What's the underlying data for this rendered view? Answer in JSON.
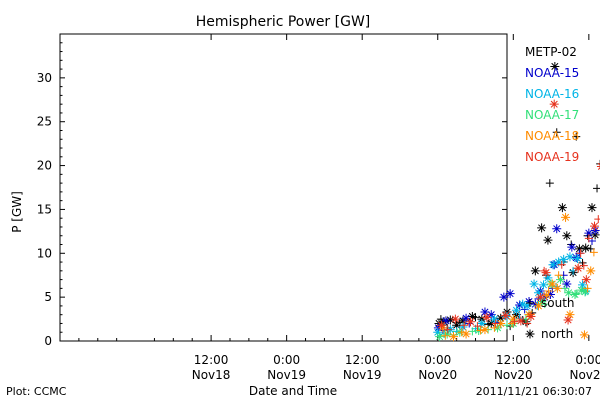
{
  "chart_data": {
    "type": "scatter",
    "title": "Hemispheric Power [GW]",
    "xlabel": "Date and Time",
    "ylabel": "P [GW]",
    "x_range_hours": [
      -36,
      35
    ],
    "ylim": [
      0,
      35
    ],
    "yticks": [
      0,
      5,
      10,
      15,
      20,
      25,
      30
    ],
    "xticks": [
      {
        "t": -12,
        "time": "12:00",
        "date": "Nov18"
      },
      {
        "t": 0,
        "time": "0:00",
        "date": "Nov19"
      },
      {
        "t": 12,
        "time": "12:00",
        "date": "Nov19"
      },
      {
        "t": 24,
        "time": "0:00",
        "date": "Nov20"
      },
      {
        "t": 36,
        "time": "12:00",
        "date": "Nov20"
      },
      {
        "t": 48,
        "time": "0:00",
        "date": "Nov21"
      }
    ],
    "marker_legend": [
      {
        "symbol": "+",
        "label": "south"
      },
      {
        "symbol": "*",
        "label": "north"
      }
    ],
    "series": [
      {
        "name": "METP-02",
        "color": "#000000",
        "north": [
          [
            24.2,
            2.0
          ],
          [
            25.0,
            2.2
          ],
          [
            26.0,
            2.4
          ],
          [
            27.0,
            1.8
          ],
          [
            28.0,
            2.3
          ],
          [
            29.5,
            2.8
          ],
          [
            31.0,
            2.5
          ],
          [
            32.5,
            2.0
          ],
          [
            34.0,
            2.6
          ],
          [
            35.0,
            3.3
          ],
          [
            36.5,
            3.0
          ],
          [
            38.0,
            2.2
          ],
          [
            39.5,
            8.0
          ],
          [
            40.5,
            12.9
          ],
          [
            41.5,
            11.5
          ],
          [
            42.6,
            31.3
          ],
          [
            43.8,
            15.2
          ],
          [
            44.5,
            12.0
          ],
          [
            45.5,
            7.8
          ],
          [
            46.5,
            10.5
          ],
          [
            47.5,
            10.6
          ],
          [
            48.5,
            15.2
          ],
          [
            49.0,
            12.1
          ]
        ],
        "south": [
          [
            24.5,
            2.5
          ],
          [
            25.5,
            1.5
          ],
          [
            27.5,
            2.1
          ],
          [
            30.0,
            2.7
          ],
          [
            32.0,
            1.9
          ],
          [
            35.5,
            1.7
          ],
          [
            37.5,
            2.4
          ],
          [
            39.0,
            3.2
          ],
          [
            41.2,
            7.5
          ],
          [
            41.8,
            18.0
          ],
          [
            42.9,
            23.8
          ],
          [
            44.0,
            9.0
          ],
          [
            45.2,
            11.0
          ],
          [
            46.0,
            23.3
          ],
          [
            47.0,
            8.9
          ],
          [
            47.8,
            12.0
          ],
          [
            48.3,
            10.5
          ],
          [
            49.3,
            17.4
          ],
          [
            49.8,
            20.2
          ]
        ]
      },
      {
        "name": "NOAA-15",
        "color": "#0000cc",
        "north": [
          [
            24.1,
            1.5
          ],
          [
            25.3,
            2.3
          ],
          [
            28.5,
            2.6
          ],
          [
            31.5,
            3.3
          ],
          [
            32.5,
            3.0
          ],
          [
            34.5,
            5.0
          ],
          [
            35.5,
            5.4
          ],
          [
            37.0,
            4.1
          ],
          [
            38.5,
            4.5
          ],
          [
            39.5,
            4.2
          ],
          [
            40.3,
            5.7
          ],
          [
            41.0,
            5.0
          ],
          [
            41.9,
            5.3
          ],
          [
            42.5,
            8.7
          ],
          [
            42.9,
            12.8
          ],
          [
            44.5,
            6.5
          ],
          [
            45.3,
            10.7
          ],
          [
            46.0,
            9.5
          ],
          [
            48.0,
            12.3
          ],
          [
            49.0,
            12.6
          ]
        ],
        "south": [
          [
            24.8,
            1.2
          ],
          [
            29.0,
            2.0
          ],
          [
            33.5,
            2.1
          ],
          [
            37.8,
            3.6
          ],
          [
            40.0,
            4.8
          ],
          [
            42.2,
            6.0
          ],
          [
            44.0,
            7.5
          ],
          [
            46.5,
            10.0
          ],
          [
            48.5,
            11.4
          ]
        ]
      },
      {
        "name": "NOAA-16",
        "color": "#00b4e6",
        "north": [
          [
            24.0,
            1.0
          ],
          [
            26.0,
            1.3
          ],
          [
            28.0,
            1.6
          ],
          [
            31.0,
            2.0
          ],
          [
            33.0,
            2.5
          ],
          [
            35.0,
            2.8
          ],
          [
            36.5,
            3.5
          ],
          [
            37.5,
            4.2
          ],
          [
            38.2,
            4.0
          ],
          [
            39.3,
            6.5
          ],
          [
            40.0,
            5.5
          ],
          [
            40.8,
            6.4
          ],
          [
            41.5,
            7.2
          ],
          [
            42.3,
            8.7
          ],
          [
            43.2,
            9.0
          ],
          [
            44.0,
            9.3
          ],
          [
            45.0,
            9.6
          ],
          [
            46.2,
            9.4
          ],
          [
            47.0,
            6.4
          ],
          [
            47.5,
            5.7
          ]
        ],
        "south": [
          [
            25.0,
            0.8
          ],
          [
            27.0,
            1.1
          ],
          [
            30.0,
            1.4
          ],
          [
            34.0,
            2.0
          ],
          [
            37.0,
            2.6
          ],
          [
            39.8,
            4.0
          ],
          [
            42.8,
            6.2
          ],
          [
            45.5,
            8.0
          ]
        ]
      },
      {
        "name": "NOAA-17",
        "color": "#33e07a",
        "north": [
          [
            24.3,
            0.5
          ],
          [
            25.5,
            0.8
          ],
          [
            27.5,
            1.0
          ],
          [
            30.5,
            1.2
          ],
          [
            33.5,
            1.5
          ],
          [
            36.0,
            2.0
          ],
          [
            38.5,
            3.0
          ],
          [
            40.5,
            4.5
          ],
          [
            42.0,
            6.5
          ],
          [
            43.5,
            7.0
          ],
          [
            44.8,
            5.5
          ],
          [
            45.8,
            5.3
          ],
          [
            46.8,
            5.8
          ],
          [
            47.4,
            5.6
          ]
        ],
        "south": [
          [
            26.5,
            0.7
          ],
          [
            29.5,
            1.1
          ],
          [
            32.0,
            1.3
          ],
          [
            35.0,
            1.8
          ],
          [
            38.0,
            2.5
          ],
          [
            41.0,
            4.2
          ],
          [
            44.2,
            6.0
          ],
          [
            46.0,
            5.4
          ]
        ]
      },
      {
        "name": "NOAA-18",
        "color": "#ff8c00",
        "north": [
          [
            24.8,
            1.5
          ],
          [
            26.5,
            0.5
          ],
          [
            28.5,
            0.8
          ],
          [
            31.5,
            1.3
          ],
          [
            34.0,
            2.0
          ],
          [
            36.0,
            2.5
          ],
          [
            38.5,
            3.0
          ],
          [
            40.0,
            4.0
          ],
          [
            41.3,
            5.2
          ],
          [
            42.2,
            6.5
          ],
          [
            43.0,
            6.0
          ],
          [
            44.3,
            14.1
          ],
          [
            45.0,
            3.0
          ],
          [
            47.3,
            0.7
          ],
          [
            48.3,
            8.0
          ]
        ],
        "south": [
          [
            25.2,
            0.6
          ],
          [
            27.8,
            1.0
          ],
          [
            30.8,
            1.2
          ],
          [
            33.0,
            1.5
          ],
          [
            35.8,
            2.0
          ],
          [
            38.8,
            3.0
          ],
          [
            41.6,
            5.7
          ],
          [
            43.2,
            7.5
          ],
          [
            46.3,
            8.3
          ],
          [
            47.8,
            6.0
          ],
          [
            48.8,
            10.1
          ]
        ]
      },
      {
        "name": "NOAA-19",
        "color": "#e6321e",
        "north": [
          [
            24.6,
            1.8
          ],
          [
            26.8,
            2.5
          ],
          [
            29.2,
            2.2
          ],
          [
            31.8,
            2.7
          ],
          [
            34.8,
            2.9
          ],
          [
            37.2,
            2.3
          ],
          [
            38.8,
            2.8
          ],
          [
            40.3,
            5.0
          ],
          [
            41.2,
            7.8
          ],
          [
            42.5,
            27.0
          ],
          [
            44.7,
            2.4
          ],
          [
            46.3,
            8.3
          ],
          [
            47.6,
            7.0
          ],
          [
            48.9,
            13.1
          ],
          [
            50.0,
            19.9
          ]
        ],
        "south": [
          [
            25.6,
            1.3
          ],
          [
            28.2,
            1.8
          ],
          [
            30.3,
            1.7
          ],
          [
            33.2,
            2.0
          ],
          [
            36.2,
            2.2
          ],
          [
            38.2,
            2.0
          ],
          [
            40.9,
            8.0
          ],
          [
            43.7,
            8.7
          ],
          [
            46.7,
            10.0
          ],
          [
            47.2,
            8.6
          ],
          [
            48.0,
            11.7
          ],
          [
            49.5,
            13.9
          ]
        ]
      }
    ]
  },
  "footer": {
    "left": "Plot: CCMC",
    "right": "2011/11/21 06:30:07"
  }
}
